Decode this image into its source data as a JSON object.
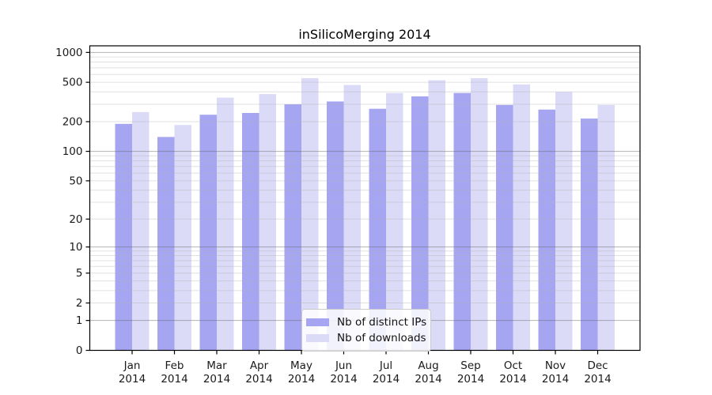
{
  "chart_data": {
    "type": "bar",
    "title": "inSilicoMerging 2014",
    "scale": "log10(value+1)",
    "grid": "horizontal",
    "legend_position": "lower center",
    "categories": [
      "Jan",
      "Feb",
      "Mar",
      "Apr",
      "May",
      "Jun",
      "Jul",
      "Aug",
      "Sep",
      "Oct",
      "Nov",
      "Dec"
    ],
    "x_tick_year": "2014",
    "series": [
      {
        "name": "Nb of distinct IPs",
        "color": "#a5a5f2",
        "values": [
          190,
          140,
          235,
          245,
          300,
          320,
          270,
          360,
          390,
          295,
          265,
          215
        ]
      },
      {
        "name": "Nb of downloads",
        "color": "#dbdbf8",
        "values": [
          250,
          185,
          350,
          380,
          550,
          470,
          390,
          525,
          550,
          475,
          400,
          295
        ]
      }
    ],
    "yticks": [
      0,
      1,
      2,
      5,
      10,
      20,
      50,
      100,
      200,
      500,
      1000
    ],
    "ylim": [
      0,
      1160
    ],
    "xlabel": "",
    "ylabel": ""
  }
}
